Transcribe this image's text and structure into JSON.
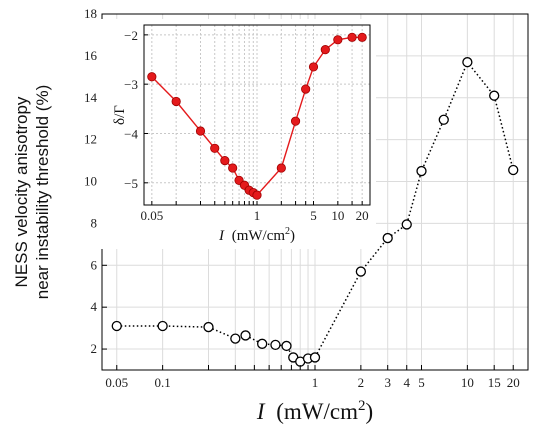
{
  "chart_data": [
    {
      "type": "line",
      "xscale": "log",
      "xlim": [
        0.04,
        25
      ],
      "ylim": [
        1,
        18
      ],
      "grid": true,
      "line_style": "dotted",
      "marker": "open-circle",
      "line_color": "#000000",
      "ylabel_lines": [
        "NESS velocity anisotropy",
        "near instability threshold (%)"
      ],
      "xlabel": {
        "italic": "I",
        "units": "(mW/cm",
        "sup": "2",
        "close": ")"
      },
      "x_ticks": [
        0.05,
        0.1,
        0.2,
        0.3,
        0.4,
        0.5,
        0.6,
        0.7,
        0.8,
        0.9,
        1,
        2,
        3,
        4,
        5,
        10,
        15,
        20
      ],
      "x_tick_labels": [
        {
          "x": 0.05,
          "label": "0.05"
        },
        {
          "x": 0.1,
          "label": "0.1"
        },
        {
          "x": 1,
          "label": "1"
        },
        {
          "x": 2,
          "label": "2"
        },
        {
          "x": 3,
          "label": "3"
        },
        {
          "x": 4,
          "label": "4"
        },
        {
          "x": 5,
          "label": "5"
        },
        {
          "x": 10,
          "label": "10"
        },
        {
          "x": 15,
          "label": "15"
        },
        {
          "x": 20,
          "label": "20"
        }
      ],
      "y_ticks": [
        2,
        4,
        6,
        8,
        10,
        12,
        14,
        16,
        18
      ],
      "series": [
        {
          "x": [
            0.05,
            0.1,
            0.2,
            0.3,
            0.35,
            0.45,
            0.55,
            0.65,
            0.72,
            0.8,
            0.9,
            1.0,
            2.0,
            3.0,
            4.0,
            5.0,
            7.0,
            10.0,
            15.0,
            20.0
          ],
          "y": [
            3.1,
            3.1,
            3.05,
            2.5,
            2.65,
            2.25,
            2.2,
            2.15,
            1.6,
            1.4,
            1.55,
            1.6,
            5.7,
            7.3,
            7.95,
            10.5,
            12.95,
            15.7,
            14.1,
            10.55
          ]
        }
      ]
    },
    {
      "type": "line",
      "inset": true,
      "xscale": "log",
      "xlim": [
        0.04,
        25
      ],
      "ylim": [
        -5.45,
        -1.8
      ],
      "grid": true,
      "line_color": "#e41a1c",
      "marker": "filled-circle",
      "ylabel": "δ/Γ",
      "xlabel": {
        "italic": "I",
        "units": "(mW/cm",
        "sup": "2",
        "close": ")"
      },
      "x_ticks": [
        0.05,
        0.1,
        0.2,
        0.3,
        0.4,
        0.5,
        0.6,
        0.7,
        0.8,
        0.9,
        1,
        2,
        3,
        4,
        5,
        10,
        15,
        20
      ],
      "x_tick_labels": [
        {
          "x": 0.05,
          "label": "0.05"
        },
        {
          "x": 1,
          "label": "1"
        },
        {
          "x": 5,
          "label": "5"
        },
        {
          "x": 10,
          "label": "10"
        },
        {
          "x": 20,
          "label": "20"
        }
      ],
      "y_ticks": [
        -5,
        -4,
        -3,
        -2
      ],
      "y_tick_labels": [
        "−5",
        "−4",
        "−3",
        "−2"
      ],
      "series": [
        {
          "x": [
            0.05,
            0.1,
            0.2,
            0.3,
            0.4,
            0.5,
            0.6,
            0.7,
            0.8,
            0.9,
            1.0,
            2.0,
            3.0,
            4.0,
            5.0,
            7.0,
            10.0,
            15.0,
            20.0
          ],
          "y": [
            -2.85,
            -3.35,
            -3.95,
            -4.3,
            -4.55,
            -4.7,
            -4.95,
            -5.05,
            -5.15,
            -5.2,
            -5.25,
            -4.7,
            -3.75,
            -3.1,
            -2.65,
            -2.3,
            -2.1,
            -2.05,
            -2.05
          ]
        }
      ]
    }
  ]
}
